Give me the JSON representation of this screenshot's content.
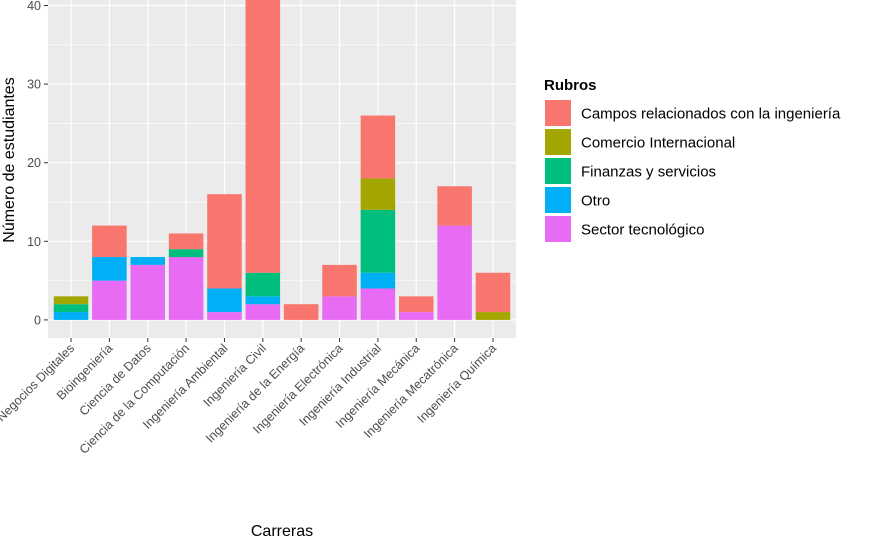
{
  "chart_data": {
    "type": "bar",
    "stacked": true,
    "title": "",
    "xlabel": "Carreras",
    "ylabel": "Número de estudiantes",
    "ylim": [
      -2.3,
      40.7
    ],
    "yticks": [
      0,
      10,
      20,
      30,
      40
    ],
    "grid": true,
    "legend": {
      "title": "Rubros",
      "placement": "right"
    },
    "categories": [
      "Negocios Digitales",
      "Bioingeniería",
      "Ciencia de Datos",
      "Ciencia de la Computación",
      "Ingeniería Ambiental",
      "Ingeniería Civil",
      "Ingeniería de la Energía",
      "Ingeniería Electrónica",
      "Ingeniería Industrial",
      "Ingeniería Mecánica",
      "Ingeniería Mecatrónica",
      "Ingeniería Química"
    ],
    "series": [
      {
        "name": "Sector tecnológico",
        "color": "#E76BF3",
        "values": [
          0,
          5,
          7,
          8,
          1,
          2,
          0,
          3,
          4,
          1,
          12,
          0
        ]
      },
      {
        "name": "Otro",
        "color": "#00B0F6",
        "values": [
          1,
          3,
          1,
          0,
          3,
          1,
          0,
          0,
          2,
          0,
          0,
          0
        ]
      },
      {
        "name": "Finanzas y servicios",
        "color": "#00BF7D",
        "values": [
          1,
          0,
          0,
          1,
          0,
          3,
          0,
          0,
          8,
          0,
          0,
          0
        ]
      },
      {
        "name": "Comercio Internacional",
        "color": "#A3A500",
        "values": [
          1,
          0,
          0,
          0,
          0,
          0,
          0,
          0,
          4,
          0,
          0,
          1
        ]
      },
      {
        "name": "Campos relacionados con la ingeniería",
        "color": "#F8766D",
        "values": [
          0,
          4,
          0,
          2,
          12,
          35,
          2,
          4,
          8,
          2,
          5,
          5
        ]
      }
    ],
    "legend_order": [
      "Campos relacionados con la ingeniería",
      "Comercio Internacional",
      "Finanzas y servicios",
      "Otro",
      "Sector tecnológico"
    ]
  }
}
